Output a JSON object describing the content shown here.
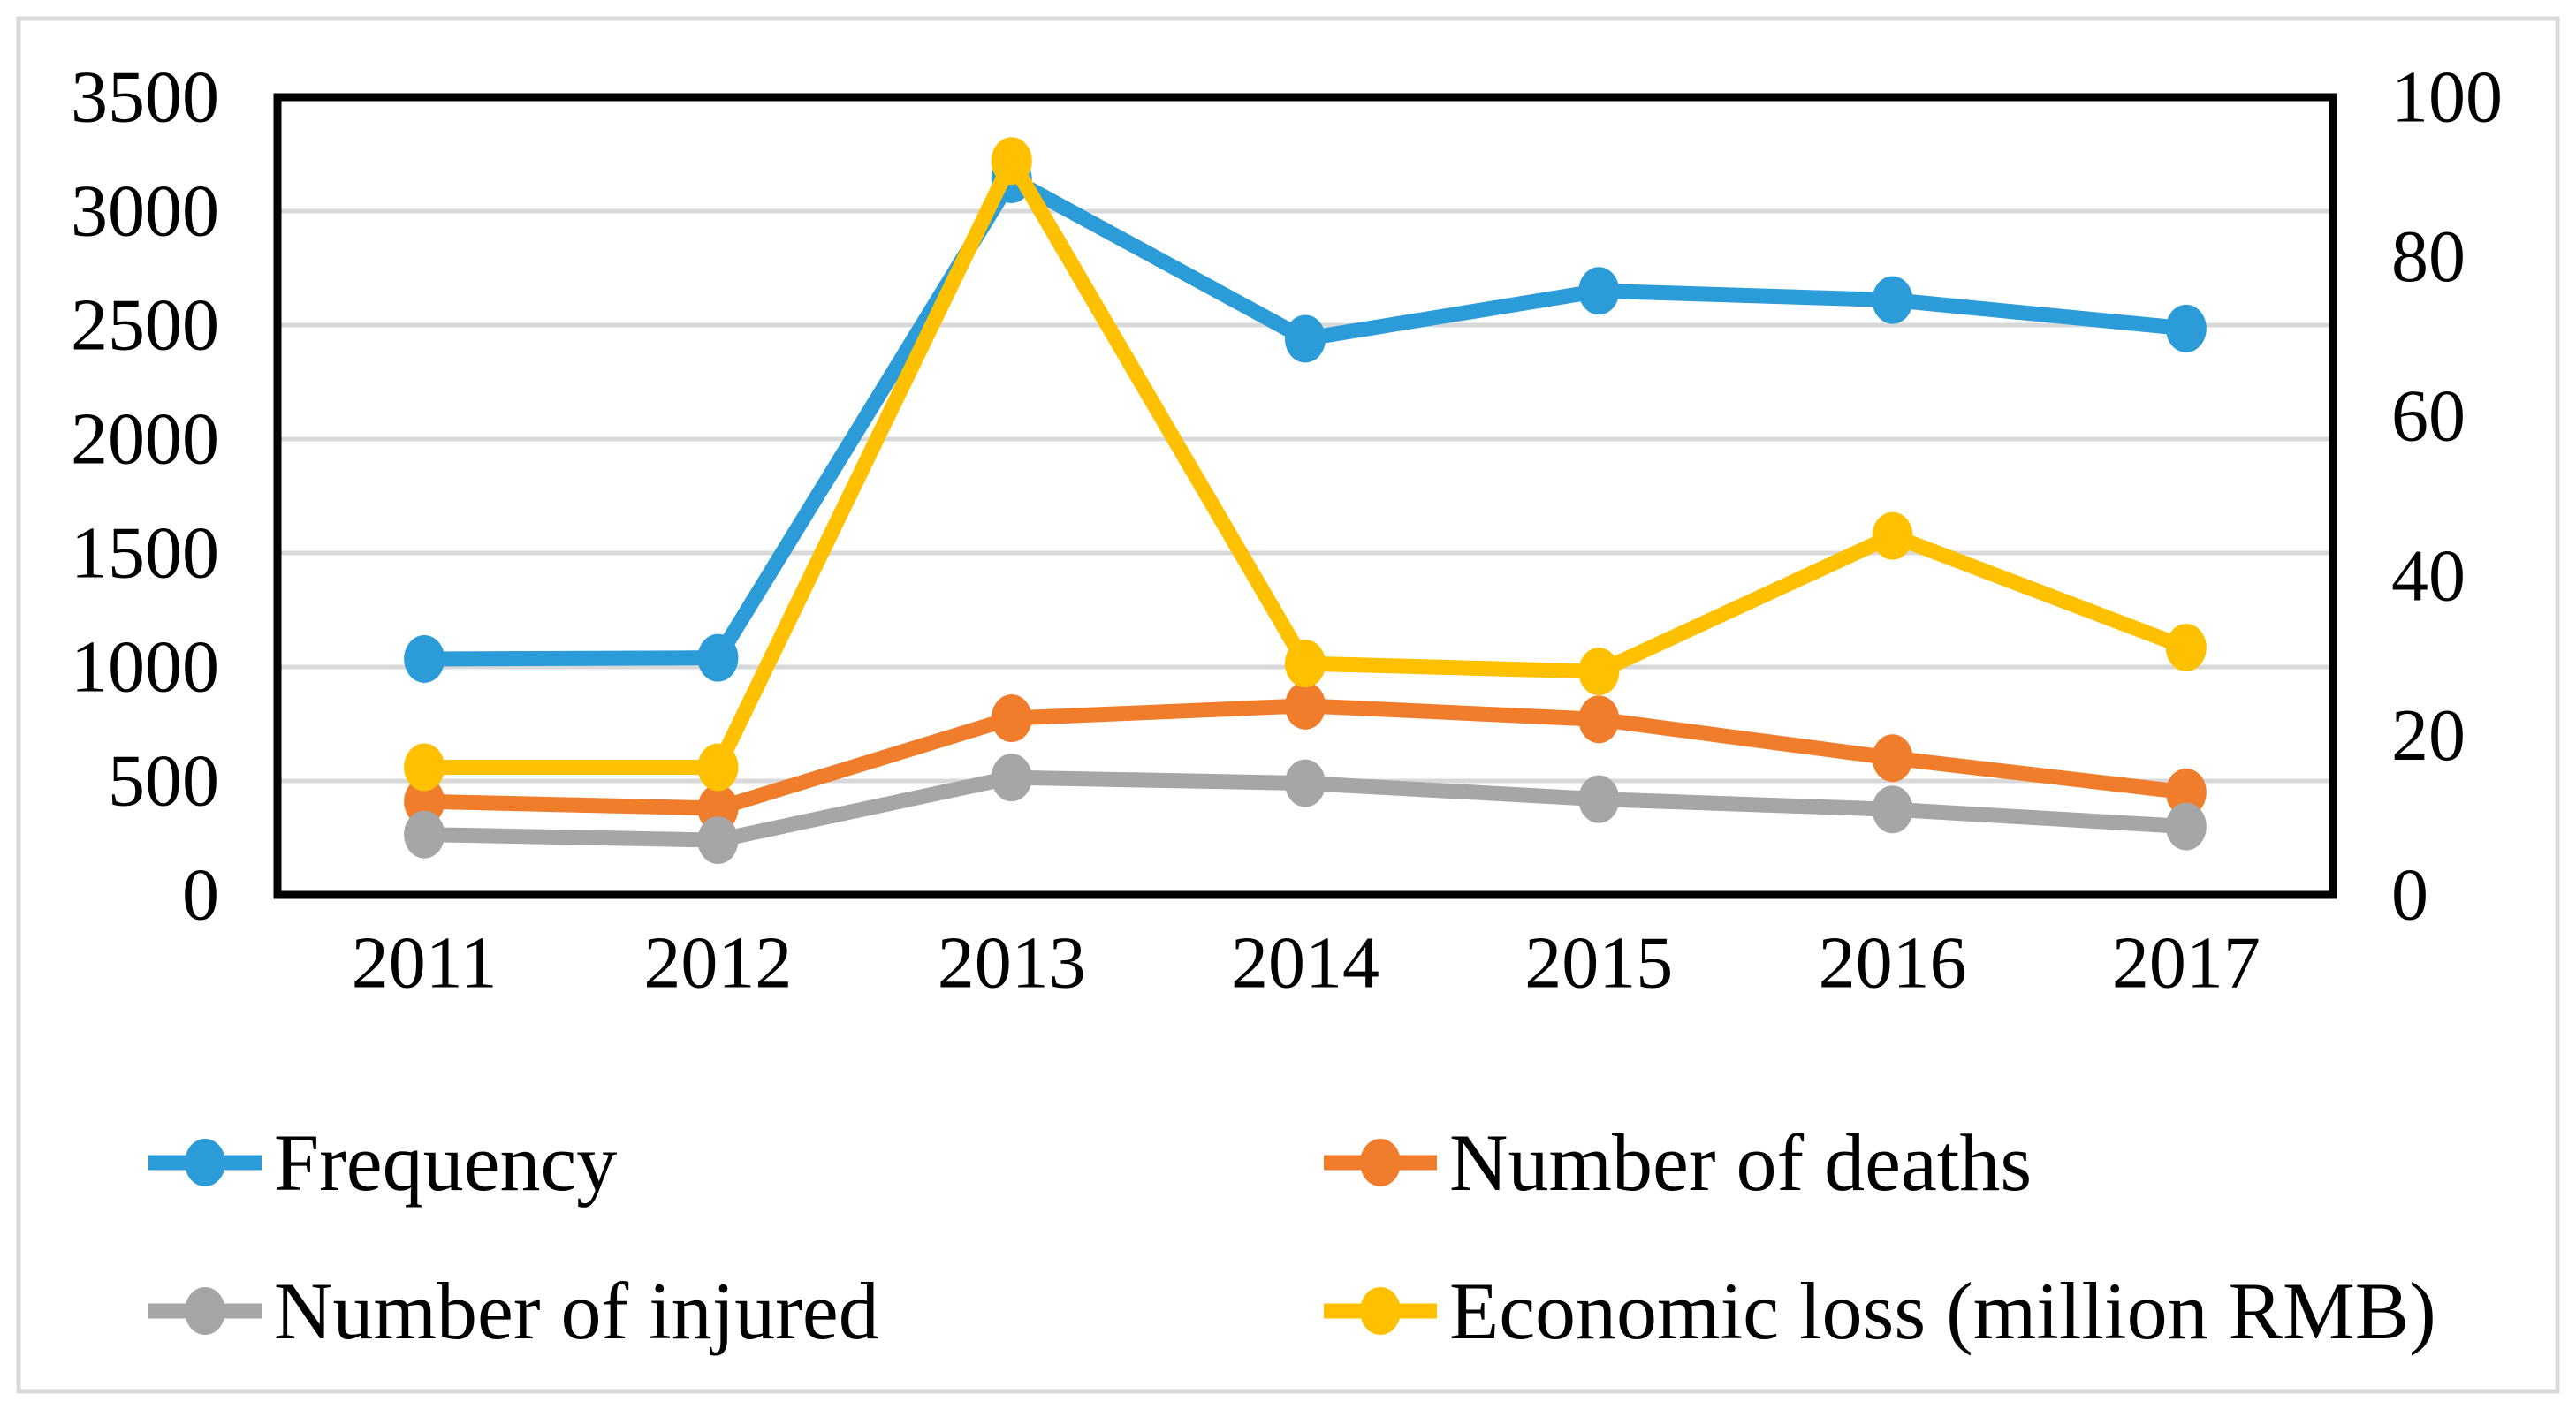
{
  "figure": {
    "background": "#FFFFFF",
    "border_color": "#D9D9D9"
  },
  "chart_data": {
    "type": "line",
    "categories": [
      "2011",
      "2012",
      "2013",
      "2014",
      "2015",
      "2016",
      "2017"
    ],
    "series": [
      {
        "name": "Frequency",
        "axis": "left",
        "color": "#2B9CD8",
        "values": [
          1035,
          1040,
          3140,
          2440,
          2650,
          2610,
          2485
        ]
      },
      {
        "name": "Number of deaths",
        "axis": "left",
        "color": "#F07D2B",
        "values": [
          410,
          380,
          775,
          830,
          770,
          600,
          450
        ]
      },
      {
        "name": "Number of injured",
        "axis": "left",
        "color": "#A6A6A6",
        "values": [
          265,
          240,
          515,
          490,
          420,
          375,
          300
        ]
      },
      {
        "name": "Economic loss (million RMB)",
        "axis": "right",
        "color": "#FFC000",
        "values": [
          16,
          16,
          92,
          29,
          28,
          45,
          31
        ]
      }
    ],
    "left_axis": {
      "min": 0,
      "max": 3500,
      "step": 500,
      "tick_labels": [
        "0",
        "500",
        "1000",
        "1500",
        "2000",
        "2500",
        "3000",
        "3500"
      ]
    },
    "right_axis": {
      "min": 0,
      "max": 100,
      "step": 20,
      "tick_labels": [
        "0",
        "20",
        "40",
        "60",
        "80",
        "100"
      ]
    },
    "x_axis": {
      "tick_labels": [
        "2011",
        "2012",
        "2013",
        "2014",
        "2015",
        "2016",
        "2017"
      ]
    },
    "grid": "horizontal",
    "grid_color": "#D9D9D9",
    "axis_line_color": "#000000",
    "legend_position": "bottom",
    "legend_rows": [
      [
        "Frequency",
        "Number of deaths"
      ],
      [
        "Number of injured",
        "Economic loss (million RMB)"
      ]
    ]
  }
}
